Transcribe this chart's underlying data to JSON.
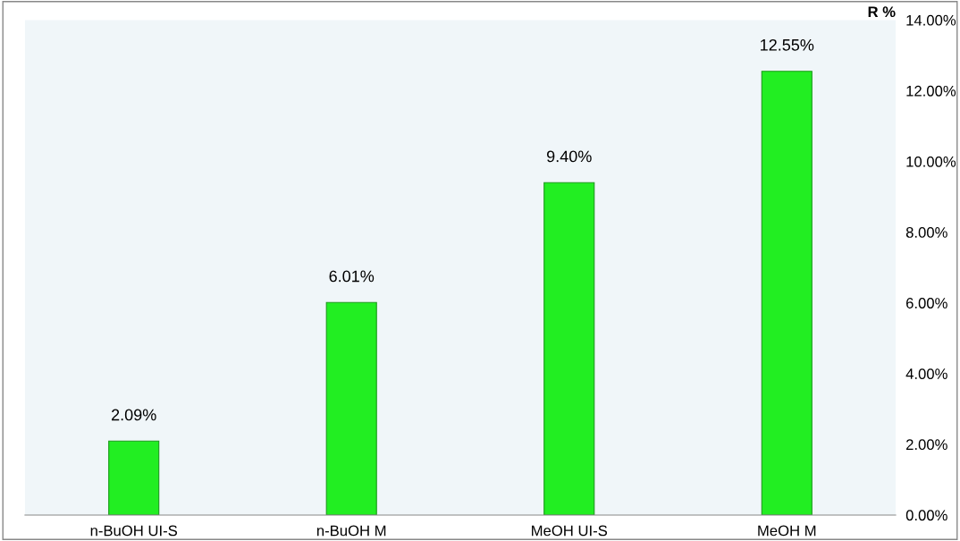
{
  "chart_data": {
    "type": "bar",
    "ylabel": "R %",
    "categories": [
      "n-BuOH UI-S",
      "n-BuOH M",
      "MeOH UI-S",
      "MeOH M"
    ],
    "values": [
      2.09,
      6.01,
      9.4,
      12.55
    ],
    "value_labels": [
      "2.09%",
      "6.01%",
      "9.40%",
      "12.55%"
    ],
    "color": "#22ee22",
    "ylim": [
      0,
      14
    ],
    "yticks": [
      {
        "value": 0,
        "label": "0.00%"
      },
      {
        "value": 2,
        "label": "2.00%"
      },
      {
        "value": 4,
        "label": "4.00%"
      },
      {
        "value": 6,
        "label": "6.00%"
      },
      {
        "value": 8,
        "label": "8.00%"
      },
      {
        "value": 10,
        "label": "10.00%"
      },
      {
        "value": 12,
        "label": "12.00%"
      },
      {
        "value": 14,
        "label": "14.00%"
      }
    ],
    "grid": false,
    "legend": false
  }
}
